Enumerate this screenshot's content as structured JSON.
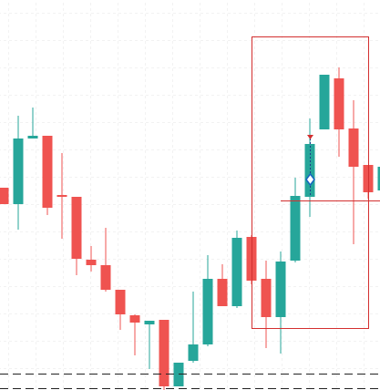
{
  "chart_data": {
    "type": "candlestick",
    "up_color": "#26a69a",
    "down_color": "#ef5350",
    "ylim": [
      0,
      428
    ],
    "open": [
      222,
      204,
      276,
      279,
      214,
      212,
      143,
      137,
      110,
      82,
      72,
      77,
      4,
      32,
      50,
      122,
      92,
      168,
      122,
      80,
      142,
      212,
      286,
      342,
      287,
      247,
      219
    ],
    "high": [
      222,
      301,
      310,
      279,
      260,
      212,
      158,
      178,
      110,
      83,
      76,
      77,
      30,
      108,
      148,
      138,
      175,
      170,
      142,
      152,
      233,
      298,
      346,
      354,
      318,
      247,
      245
    ],
    "low": [
      204,
      176,
      276,
      192,
      166,
      126,
      130,
      108,
      66,
      38,
      23,
      0,
      4,
      30,
      48,
      92,
      90,
      116,
      46,
      40,
      140,
      190,
      286,
      256,
      160,
      210,
      219
    ],
    "close": [
      204,
      276,
      279,
      200,
      212,
      144,
      137,
      110,
      83,
      74,
      76,
      4,
      30,
      50,
      122,
      92,
      167,
      120,
      80,
      141,
      213,
      270,
      346,
      286,
      245,
      217,
      245
    ]
  }
}
